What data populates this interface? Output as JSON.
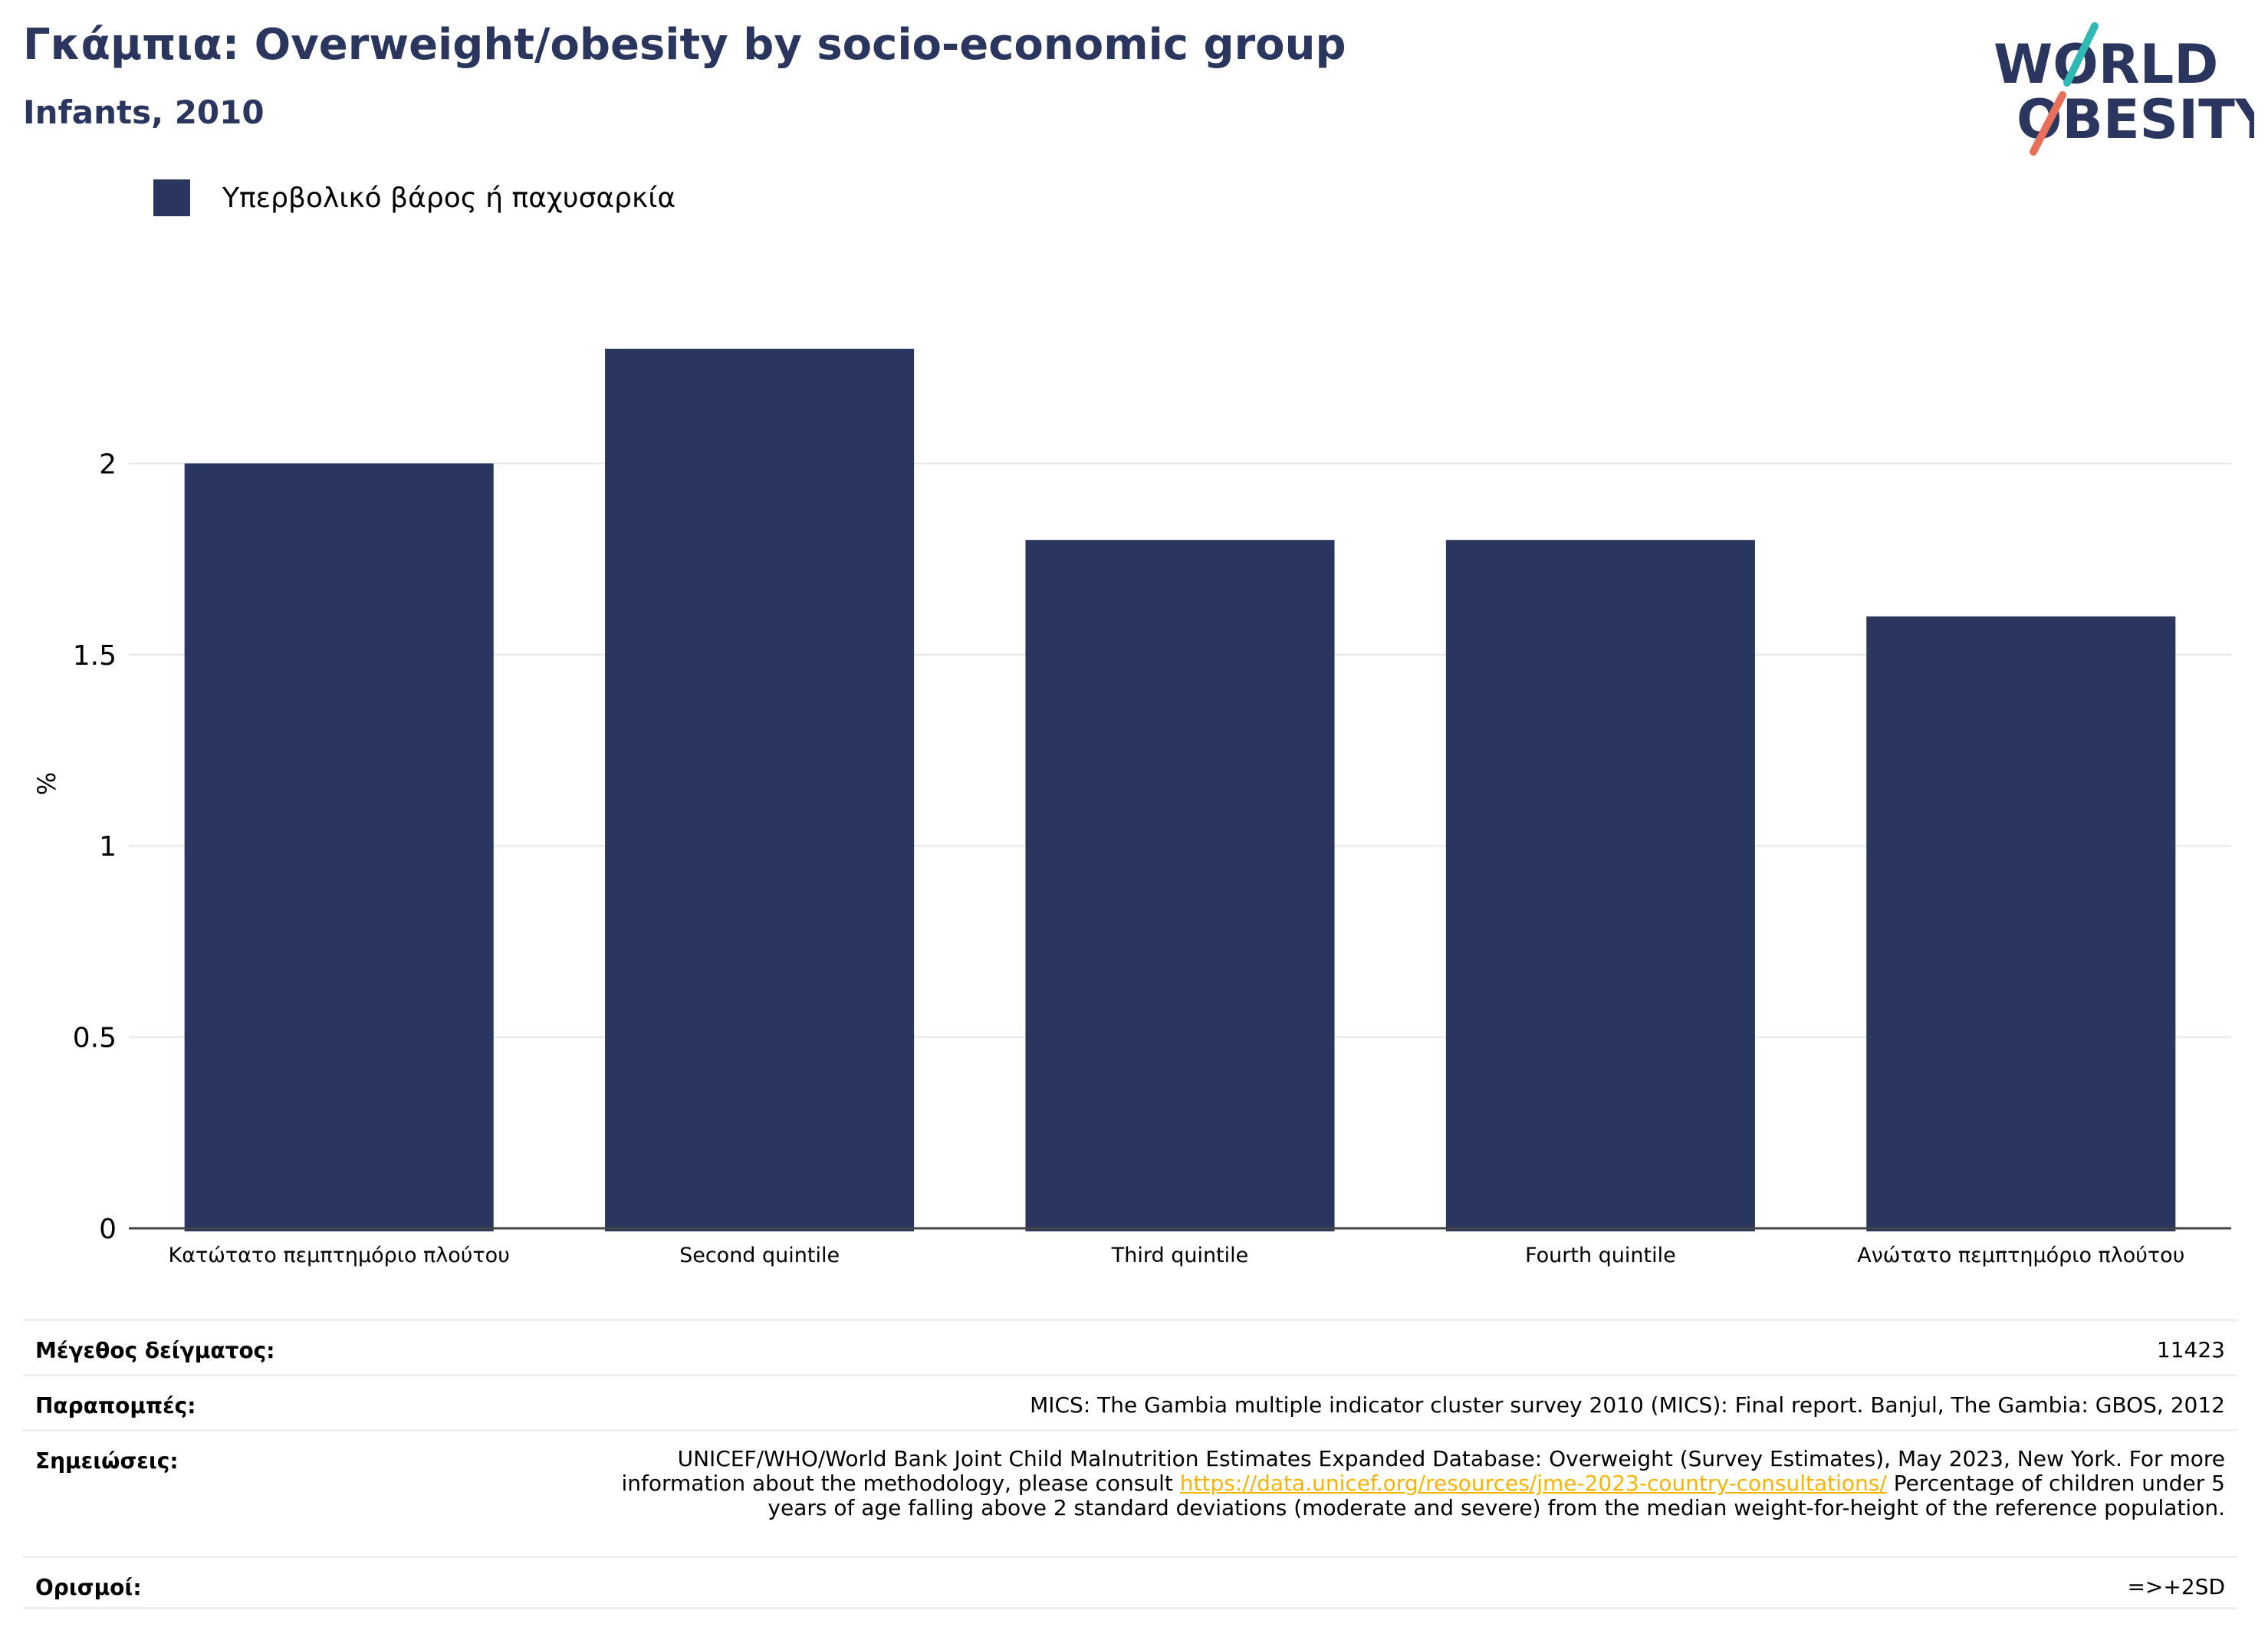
{
  "header": {
    "title": "Γκάμπια: Overweight/obesity by socio-economic group",
    "subtitle": "Infants, 2010"
  },
  "logo": {
    "line1": "WORLD",
    "line2": "OBESITY"
  },
  "colors": {
    "bar": "#2b365f",
    "grid": "#e6e6e6",
    "logo_teal": "#2fb8b4",
    "logo_coral": "#e8705a",
    "link": "#f4b400"
  },
  "chart_data": {
    "type": "bar",
    "ylabel": "%",
    "ylim": [
      0,
      2.45
    ],
    "yticks": [
      0,
      0.5,
      1,
      1.5,
      2
    ],
    "ytick_labels": [
      "0",
      "0.5",
      "1",
      "1.5",
      "2"
    ],
    "categories": [
      "Κατώτατο πεμπτημόριο πλούτου",
      "Second quintile",
      "Third quintile",
      "Fourth quintile",
      "Ανώτατο πεμπτημόριο πλούτου"
    ],
    "series": [
      {
        "name": "Υπερβολικό βάρος ή παχυσαρκία",
        "values": [
          2.0,
          2.3,
          1.8,
          1.8,
          1.6
        ]
      }
    ],
    "grid": true,
    "legend": "top-left"
  },
  "info": {
    "sample_label": "Μέγεθος δείγματος:",
    "sample_value": "11423",
    "refs_label": "Παραπομπές:",
    "refs_value": "MICS: The Gambia multiple indicator cluster survey 2010 (MICS): Final report. Banjul, The Gambia: GBOS, 2012",
    "notes_label": "Σημειώσεις:",
    "notes_before": "UNICEF/WHO/World Bank Joint Child Malnutrition Estimates Expanded Database: Overweight (Survey Estimates), May 2023, New York. For more information about the methodology, please consult ",
    "notes_link": "https://data.unicef.org/resources/jme-2023-country-consultations/",
    "notes_after": " Percentage of children under 5 years of age falling above 2 standard deviations (moderate and severe) from the median weight-for-height of the reference population.",
    "defs_label": "Ορισμοί:",
    "defs_value": "=>+2SD"
  }
}
